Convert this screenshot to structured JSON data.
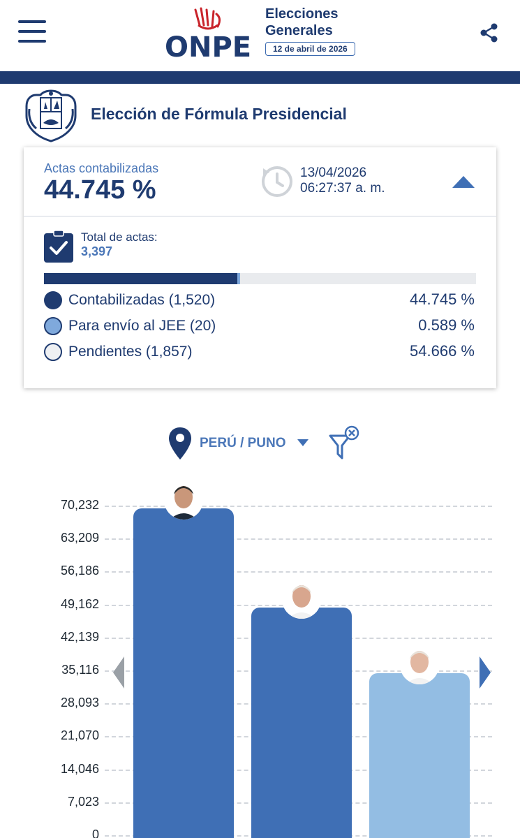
{
  "header": {
    "logo_text": "ONPE",
    "title_line1": "Elecciones",
    "title_line2": "Generales",
    "date": "12 de abril de 2026",
    "menu_icon": "hamburger-menu-icon",
    "share_icon": "share-icon"
  },
  "election": {
    "title": "Elección de Fórmula Presidencial",
    "emblem": "peru-coat-of-arms"
  },
  "summary": {
    "actas_label": "Actas contabilizadas",
    "actas_value": "44.745 %",
    "timestamp_date": "13/04/2026",
    "timestamp_time": "06:27:37 a. m.",
    "total_label": "Total de actas:",
    "total_value": "3,397",
    "progress": {
      "contabilizadas": 0.44745,
      "jee": 0.00589,
      "pendientes": 0.54666
    },
    "legend": [
      {
        "label": "Contabilizadas (1,520)",
        "pct": "44.745 %",
        "color": "#1f3b70"
      },
      {
        "label": "Para envío al JEE (20)",
        "pct": "0.589 %",
        "color": "#7fa9dc"
      },
      {
        "label": "Pendientes (1,857)",
        "pct": "54.666 %",
        "color": "#eef0f3"
      }
    ]
  },
  "filter": {
    "location": "PERÚ / PUNO",
    "pin_icon": "location-pin-icon",
    "clear_icon": "filter-clear-icon"
  },
  "chart_data": {
    "type": "bar",
    "ylim": [
      0,
      70232
    ],
    "yticks": [
      "70,232",
      "63,209",
      "56,186",
      "49,162",
      "42,139",
      "35,116",
      "28,093",
      "21,070",
      "14,046",
      "7,023",
      "0"
    ],
    "values": [
      70232,
      49162,
      35116
    ],
    "colors": [
      "#3f6fb5",
      "#3f6fb5",
      "#93bde3"
    ],
    "grid": true
  }
}
